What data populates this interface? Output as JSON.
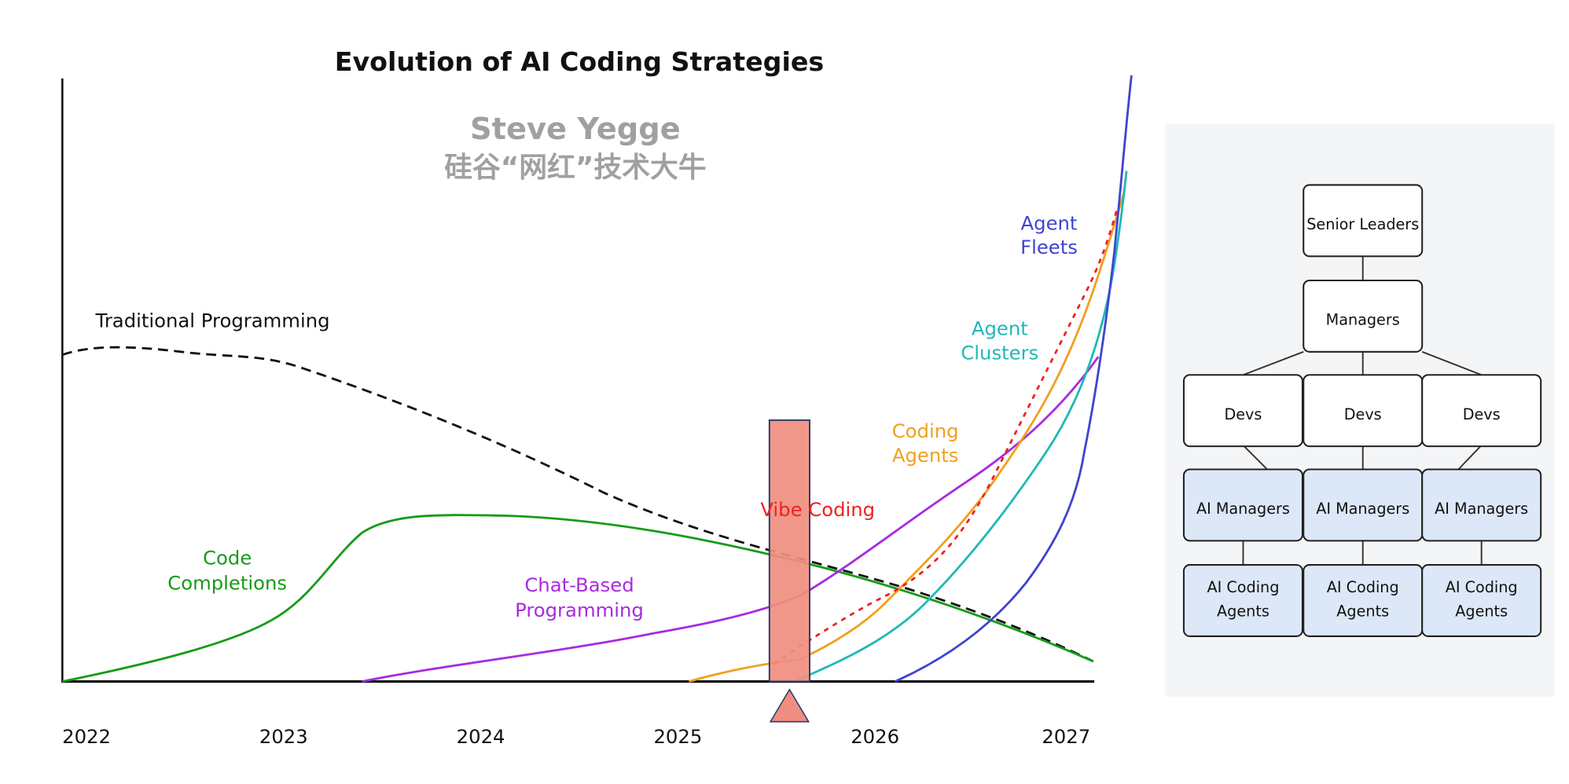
{
  "chart": {
    "title": "Evolution of AI Coding Strategies",
    "watermark": [
      "Steve Yegge",
      "硅谷“网红”技术大牛"
    ],
    "x_labels": [
      "2022",
      "2023",
      "2024",
      "2025",
      "2026",
      "2027"
    ],
    "curve_labels": {
      "traditional": [
        "Traditional Programming"
      ],
      "completions": [
        "Code",
        "Completions"
      ],
      "chat": [
        "Chat-Based",
        "Programming"
      ],
      "vibe": [
        "Vibe Coding"
      ],
      "coding_agents": [
        "Coding",
        "Agents"
      ],
      "clusters": [
        "Agent",
        "Clusters"
      ],
      "fleets": [
        "Agent",
        "Fleets"
      ]
    }
  },
  "org": {
    "senior": "Senior Leaders",
    "managers": "Managers",
    "devs": [
      "Devs",
      "Devs",
      "Devs"
    ],
    "ai_managers": [
      "AI Managers",
      "AI Managers",
      "AI Managers"
    ],
    "ai_agents": [
      [
        "AI Coding",
        "Agents"
      ],
      [
        "AI Coding",
        "Agents"
      ],
      [
        "AI Coding",
        "Agents"
      ]
    ]
  }
}
